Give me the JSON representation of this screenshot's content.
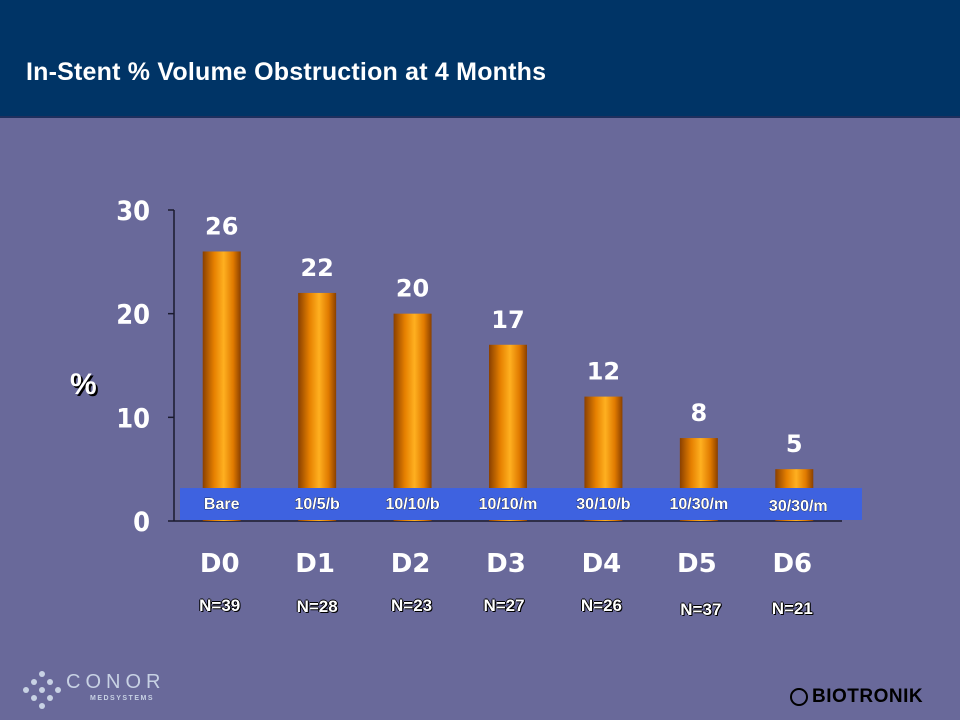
{
  "header": {
    "title": "In-Stent % Volume Obstruction at 4 Months"
  },
  "chart_data": {
    "type": "bar",
    "title": "",
    "xlabel": "",
    "ylabel": "%",
    "ylim": [
      0,
      30
    ],
    "yticks": [
      0,
      10,
      20,
      30
    ],
    "categories": [
      "D0",
      "D1",
      "D2",
      "D3",
      "D4",
      "D5",
      "D6"
    ],
    "values": [
      26,
      22,
      20,
      17,
      12,
      8,
      5
    ],
    "data_labels": [
      "26",
      "22",
      "20",
      "17",
      "12",
      "8",
      "5"
    ],
    "device_labels": [
      "Bare",
      "10/5/b",
      "10/10/b",
      "10/10/m",
      "30/10/b",
      "10/30/m",
      "30/30/m"
    ],
    "n_labels": [
      "N=39",
      "N=28",
      "N=23",
      "N=27",
      "N=26",
      "N=37",
      "N=21"
    ],
    "grid": false,
    "colors": {
      "bar_light": "#ffb020",
      "bar_mid": "#e68000",
      "bar_dark": "#8a4000",
      "device_band": "#3e62e0",
      "background": "#69699a",
      "header": "#003466"
    }
  },
  "logos": {
    "left_name": "CONOR",
    "left_sub": "MEDSYSTEMS",
    "right_name": "BIOTRONIK",
    "right_mark": "bio"
  }
}
